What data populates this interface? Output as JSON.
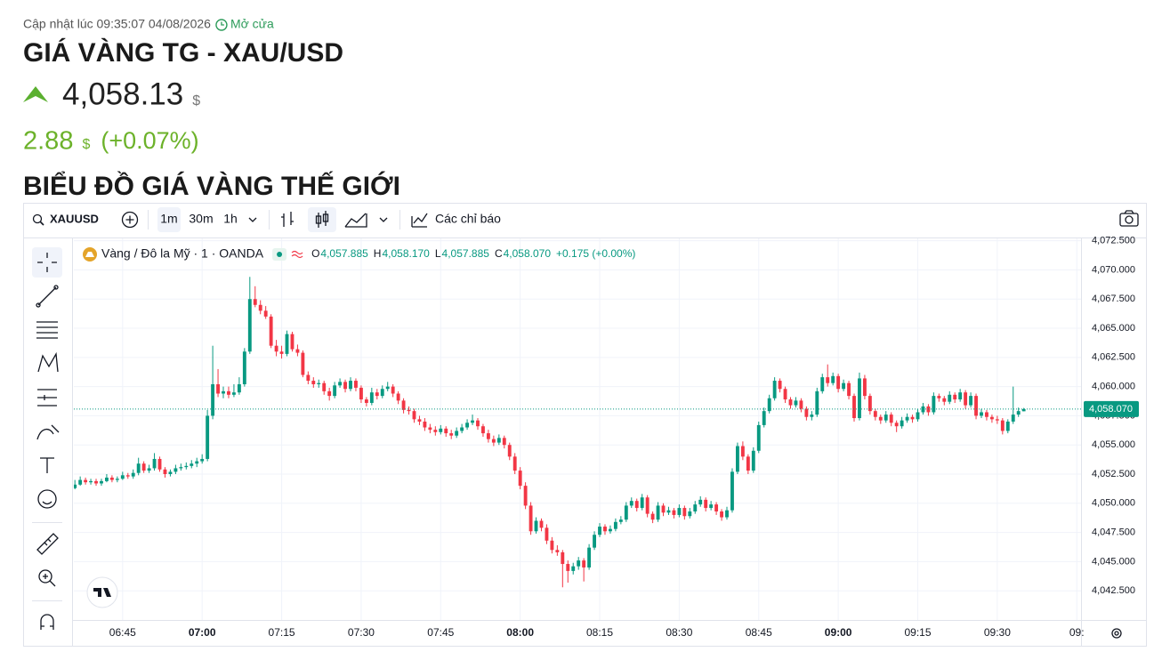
{
  "header": {
    "updated": "Cập nhật lúc 09:35:07 04/08/2026",
    "status": "Mở cửa",
    "title": "GIÁ VÀNG TG - XAU/USD",
    "price": "4,058.13",
    "currency": "$",
    "change": "2.88",
    "change_currency": "$",
    "change_pct": "(+0.07%)",
    "section_title": "BIỂU ĐỒ GIÁ VÀNG THẾ GIỚI"
  },
  "toolbar": {
    "symbol": "XAUUSD",
    "intervals": [
      "1m",
      "30m",
      "1h"
    ],
    "indicators": "Các chỉ báo"
  },
  "chart_data": {
    "type": "candlestick",
    "up_color": "#089981",
    "down_color": "#f23645",
    "grid": true,
    "legend": {
      "name": "Vàng / Đô la Mỹ · 1 · OANDA",
      "open_label": "O",
      "open": "4,057.885",
      "high_label": "H",
      "high": "4,058.170",
      "low_label": "L",
      "low": "4,057.885",
      "close_label": "C",
      "close": "4,058.070",
      "change": "+0.175 (+0.00%)"
    },
    "last_price": {
      "value": 4058.07,
      "label": "4,058.070"
    },
    "xlim": [
      395.8,
      585.8
    ],
    "ylim": [
      4040,
      4072.7
    ],
    "xticks": [
      {
        "value": 405,
        "label": "06:45"
      },
      {
        "value": 420,
        "label": "07:00"
      },
      {
        "value": 435,
        "label": "07:15"
      },
      {
        "value": 450,
        "label": "07:30"
      },
      {
        "value": 465,
        "label": "07:45"
      },
      {
        "value": 480,
        "label": "08:00"
      },
      {
        "value": 495,
        "label": "08:15"
      },
      {
        "value": 510,
        "label": "08:30"
      },
      {
        "value": 525,
        "label": "08:45"
      },
      {
        "value": 540,
        "label": "09:00"
      },
      {
        "value": 555,
        "label": "09:15"
      },
      {
        "value": 570,
        "label": "09:30"
      },
      {
        "value": 585,
        "label": "09:"
      }
    ],
    "yticks": [
      {
        "value": 4042.5,
        "label": "4,042.500"
      },
      {
        "value": 4045,
        "label": "4,045.000"
      },
      {
        "value": 4047.5,
        "label": "4,047.500"
      },
      {
        "value": 4050,
        "label": "4,050.000"
      },
      {
        "value": 4052.5,
        "label": "4,052.500"
      },
      {
        "value": 4055,
        "label": "4,055.000"
      },
      {
        "value": 4057.5,
        "label": "4,057.500"
      },
      {
        "value": 4060,
        "label": "4,060.000"
      },
      {
        "value": 4062.5,
        "label": "4,062.500"
      },
      {
        "value": 4065,
        "label": "4,065.000"
      },
      {
        "value": 4067.5,
        "label": "4,067.500"
      },
      {
        "value": 4070,
        "label": "4,070.000"
      },
      {
        "value": 4072.5,
        "label": "4,072.500"
      }
    ],
    "x": [
      396,
      397,
      398,
      399,
      400,
      401,
      402,
      403,
      404,
      405,
      406,
      407,
      408,
      409,
      410,
      411,
      412,
      413,
      414,
      415,
      416,
      417,
      418,
      419,
      420,
      421,
      422,
      423,
      424,
      425,
      426,
      427,
      428,
      429,
      430,
      431,
      432,
      433,
      434,
      435,
      436,
      437,
      438,
      439,
      440,
      441,
      442,
      443,
      444,
      445,
      446,
      447,
      448,
      449,
      450,
      451,
      452,
      453,
      454,
      455,
      456,
      457,
      458,
      459,
      460,
      461,
      462,
      463,
      464,
      465,
      466,
      467,
      468,
      469,
      470,
      471,
      472,
      473,
      474,
      475,
      476,
      477,
      478,
      479,
      480,
      481,
      482,
      483,
      484,
      485,
      486,
      487,
      488,
      489,
      490,
      491,
      492,
      493,
      494,
      495,
      496,
      497,
      498,
      499,
      500,
      501,
      502,
      503,
      504,
      505,
      506,
      507,
      508,
      509,
      510,
      511,
      512,
      513,
      514,
      515,
      516,
      517,
      518,
      519,
      520,
      521,
      522,
      523,
      524,
      525,
      526,
      527,
      528,
      529,
      530,
      531,
      532,
      533,
      534,
      535,
      536,
      537,
      538,
      539,
      540,
      541,
      542,
      543,
      544,
      545,
      546,
      547,
      548,
      549,
      550,
      551,
      552,
      553,
      554,
      555,
      556,
      557,
      558,
      559,
      560,
      561,
      562,
      563,
      564,
      565,
      566,
      567,
      568,
      569,
      570,
      571,
      572,
      573,
      574,
      575
    ],
    "ohlc": [
      [
        4051.3,
        4052.0,
        4051.2,
        4051.6
      ],
      [
        4051.6,
        4052.3,
        4051.5,
        4052.0
      ],
      [
        4052.0,
        4052.2,
        4051.6,
        4051.8
      ],
      [
        4051.8,
        4052.1,
        4051.6,
        4051.9
      ],
      [
        4051.9,
        4052.1,
        4051.5,
        4051.7
      ],
      [
        4051.7,
        4052.1,
        4051.5,
        4051.9
      ],
      [
        4051.9,
        4052.5,
        4051.8,
        4052.2
      ],
      [
        4052.2,
        4052.4,
        4051.8,
        4052.0
      ],
      [
        4052.0,
        4052.3,
        4051.8,
        4052.1
      ],
      [
        4052.1,
        4052.7,
        4052.0,
        4052.4
      ],
      [
        4052.4,
        4052.6,
        4052.1,
        4052.3
      ],
      [
        4052.3,
        4052.9,
        4052.1,
        4052.6
      ],
      [
        4052.6,
        4053.9,
        4052.4,
        4053.4
      ],
      [
        4053.4,
        4053.6,
        4052.6,
        4052.8
      ],
      [
        4052.8,
        4053.3,
        4052.6,
        4053.0
      ],
      [
        4053.0,
        4054.3,
        4052.8,
        4053.8
      ],
      [
        4053.8,
        4054.0,
        4052.7,
        4052.9
      ],
      [
        4052.9,
        4053.1,
        4052.2,
        4052.5
      ],
      [
        4052.5,
        4052.9,
        4052.3,
        4052.7
      ],
      [
        4052.7,
        4053.3,
        4052.5,
        4053.0
      ],
      [
        4053.0,
        4053.4,
        4052.8,
        4053.1
      ],
      [
        4053.1,
        4053.5,
        4052.9,
        4053.2
      ],
      [
        4053.2,
        4053.7,
        4053.0,
        4053.4
      ],
      [
        4053.4,
        4053.9,
        4053.1,
        4053.6
      ],
      [
        4053.6,
        4054.2,
        4053.4,
        4053.8
      ],
      [
        4053.8,
        4058.0,
        4053.6,
        4057.5
      ],
      [
        4057.5,
        4063.5,
        4057.2,
        4060.2
      ],
      [
        4060.2,
        4061.5,
        4059.1,
        4059.4
      ],
      [
        4059.4,
        4060.0,
        4059.0,
        4059.6
      ],
      [
        4059.6,
        4060.0,
        4059.0,
        4059.3
      ],
      [
        4059.3,
        4060.2,
        4059.1,
        4059.5
      ],
      [
        4059.5,
        4060.8,
        4059.3,
        4060.2
      ],
      [
        4060.2,
        4063.3,
        4060.0,
        4063.0
      ],
      [
        4063.0,
        4069.4,
        4062.8,
        4067.5
      ],
      [
        4067.5,
        4068.6,
        4066.8,
        4067.0
      ],
      [
        4067.0,
        4067.4,
        4066.2,
        4066.5
      ],
      [
        4066.5,
        4066.9,
        4065.8,
        4066.0
      ],
      [
        4066.0,
        4066.2,
        4063.3,
        4063.5
      ],
      [
        4063.5,
        4064.0,
        4062.6,
        4063.0
      ],
      [
        4063.0,
        4063.5,
        4062.4,
        4062.8
      ],
      [
        4062.8,
        4064.8,
        4062.6,
        4064.5
      ],
      [
        4064.5,
        4064.7,
        4063.0,
        4063.2
      ],
      [
        4063.2,
        4063.6,
        4062.6,
        4062.9
      ],
      [
        4062.9,
        4063.1,
        4060.8,
        4061.0
      ],
      [
        4061.0,
        4061.3,
        4060.2,
        4060.5
      ],
      [
        4060.5,
        4060.8,
        4059.9,
        4060.2
      ],
      [
        4060.2,
        4060.6,
        4059.9,
        4060.3
      ],
      [
        4060.3,
        4060.5,
        4059.3,
        4059.6
      ],
      [
        4059.6,
        4059.9,
        4058.8,
        4059.2
      ],
      [
        4059.2,
        4060.4,
        4059.0,
        4060.1
      ],
      [
        4060.1,
        4060.7,
        4059.9,
        4060.4
      ],
      [
        4060.4,
        4060.6,
        4059.5,
        4059.8
      ],
      [
        4059.8,
        4060.8,
        4059.6,
        4060.5
      ],
      [
        4060.5,
        4060.7,
        4059.6,
        4059.9
      ],
      [
        4059.9,
        4060.1,
        4058.6,
        4058.9
      ],
      [
        4058.9,
        4059.1,
        4058.3,
        4058.6
      ],
      [
        4058.6,
        4059.9,
        4058.4,
        4059.5
      ],
      [
        4059.5,
        4059.8,
        4058.9,
        4059.2
      ],
      [
        4059.2,
        4060.1,
        4059.0,
        4059.8
      ],
      [
        4059.8,
        4060.4,
        4059.6,
        4060.0
      ],
      [
        4060.0,
        4060.2,
        4059.1,
        4059.4
      ],
      [
        4059.4,
        4059.6,
        4058.5,
        4058.8
      ],
      [
        4058.8,
        4059.0,
        4057.7,
        4058.0
      ],
      [
        4058.0,
        4058.3,
        4057.6,
        4057.9
      ],
      [
        4057.9,
        4058.1,
        4056.9,
        4057.2
      ],
      [
        4057.2,
        4057.5,
        4056.7,
        4057.0
      ],
      [
        4057.0,
        4057.3,
        4056.2,
        4056.5
      ],
      [
        4056.5,
        4056.8,
        4056.0,
        4056.3
      ],
      [
        4056.3,
        4056.6,
        4055.8,
        4056.1
      ],
      [
        4056.1,
        4056.7,
        4055.9,
        4056.4
      ],
      [
        4056.4,
        4056.6,
        4055.7,
        4056.0
      ],
      [
        4056.0,
        4056.3,
        4055.5,
        4055.8
      ],
      [
        4055.8,
        4056.5,
        4055.6,
        4056.2
      ],
      [
        4056.2,
        4056.8,
        4056.0,
        4056.5
      ],
      [
        4056.5,
        4057.2,
        4056.3,
        4056.9
      ],
      [
        4056.9,
        4057.6,
        4056.7,
        4057.1
      ],
      [
        4057.1,
        4057.3,
        4056.3,
        4056.6
      ],
      [
        4056.6,
        4056.8,
        4055.7,
        4056.0
      ],
      [
        4056.0,
        4056.3,
        4055.2,
        4055.5
      ],
      [
        4055.5,
        4055.8,
        4054.9,
        4055.2
      ],
      [
        4055.2,
        4055.9,
        4055.0,
        4055.6
      ],
      [
        4055.6,
        4055.8,
        4054.7,
        4055.0
      ],
      [
        4055.0,
        4055.2,
        4053.7,
        4054.0
      ],
      [
        4054.0,
        4054.3,
        4052.5,
        4052.8
      ],
      [
        4052.8,
        4053.1,
        4051.2,
        4051.5
      ],
      [
        4051.5,
        4051.8,
        4049.5,
        4049.8
      ],
      [
        4049.8,
        4050.1,
        4047.3,
        4047.6
      ],
      [
        4047.6,
        4048.8,
        4047.4,
        4048.5
      ],
      [
        4048.5,
        4048.7,
        4047.6,
        4047.9
      ],
      [
        4047.9,
        4048.2,
        4046.5,
        4046.8
      ],
      [
        4046.8,
        4047.1,
        4045.7,
        4046.0
      ],
      [
        4046.0,
        4046.4,
        4045.5,
        4045.8
      ],
      [
        4045.8,
        4046.0,
        4042.8,
        4044.8
      ],
      [
        4044.8,
        4045.1,
        4043.2,
        4044.2
      ],
      [
        4044.2,
        4044.9,
        4043.9,
        4044.6
      ],
      [
        4044.6,
        4045.4,
        4044.3,
        4045.1
      ],
      [
        4045.1,
        4045.3,
        4043.3,
        4044.5
      ],
      [
        4044.5,
        4046.5,
        4044.3,
        4046.2
      ],
      [
        4046.2,
        4047.6,
        4046.0,
        4047.3
      ],
      [
        4047.3,
        4048.3,
        4047.1,
        4048.0
      ],
      [
        4048.0,
        4048.2,
        4047.3,
        4047.6
      ],
      [
        4047.6,
        4048.1,
        4047.4,
        4047.8
      ],
      [
        4047.8,
        4048.7,
        4047.6,
        4048.4
      ],
      [
        4048.4,
        4048.9,
        4048.2,
        4048.6
      ],
      [
        4048.6,
        4050.1,
        4048.4,
        4049.8
      ],
      [
        4049.8,
        4050.5,
        4049.6,
        4050.2
      ],
      [
        4050.2,
        4050.4,
        4049.3,
        4049.6
      ],
      [
        4049.6,
        4050.8,
        4049.4,
        4050.5
      ],
      [
        4050.5,
        4050.7,
        4048.8,
        4049.1
      ],
      [
        4049.1,
        4049.3,
        4048.3,
        4048.6
      ],
      [
        4048.6,
        4050.1,
        4048.4,
        4049.8
      ],
      [
        4049.8,
        4050.0,
        4048.9,
        4049.2
      ],
      [
        4049.2,
        4049.7,
        4049.0,
        4049.4
      ],
      [
        4049.4,
        4049.6,
        4048.7,
        4049.0
      ],
      [
        4049.0,
        4049.9,
        4048.8,
        4049.6
      ],
      [
        4049.6,
        4049.8,
        4048.6,
        4048.9
      ],
      [
        4048.9,
        4049.6,
        4048.7,
        4049.3
      ],
      [
        4049.3,
        4050.2,
        4049.1,
        4049.9
      ],
      [
        4049.9,
        4050.6,
        4049.7,
        4050.3
      ],
      [
        4050.3,
        4050.5,
        4049.3,
        4049.6
      ],
      [
        4049.6,
        4050.2,
        4049.4,
        4049.9
      ],
      [
        4049.9,
        4050.1,
        4049.0,
        4049.3
      ],
      [
        4049.3,
        4049.5,
        4048.5,
        4048.8
      ],
      [
        4048.8,
        4049.7,
        4048.6,
        4049.4
      ],
      [
        4049.4,
        4053.0,
        4049.2,
        4052.7
      ],
      [
        4052.7,
        4055.2,
        4052.5,
        4054.9
      ],
      [
        4054.9,
        4055.3,
        4053.7,
        4054.0
      ],
      [
        4054.0,
        4054.2,
        4052.5,
        4052.8
      ],
      [
        4052.8,
        4054.8,
        4052.6,
        4054.5
      ],
      [
        4054.5,
        4057.0,
        4054.3,
        4056.7
      ],
      [
        4056.7,
        4058.2,
        4056.5,
        4057.9
      ],
      [
        4057.9,
        4059.3,
        4057.7,
        4059.0
      ],
      [
        4059.0,
        4060.8,
        4058.8,
        4060.5
      ],
      [
        4060.5,
        4060.7,
        4059.5,
        4059.8
      ],
      [
        4059.8,
        4060.0,
        4058.6,
        4058.9
      ],
      [
        4058.9,
        4059.1,
        4058.1,
        4058.4
      ],
      [
        4058.4,
        4059.1,
        4058.2,
        4058.8
      ],
      [
        4058.8,
        4059.0,
        4057.8,
        4058.1
      ],
      [
        4058.1,
        4058.3,
        4057.1,
        4057.4
      ],
      [
        4057.4,
        4057.9,
        4057.1,
        4057.6
      ],
      [
        4057.6,
        4059.9,
        4057.4,
        4059.6
      ],
      [
        4059.6,
        4061.1,
        4059.4,
        4060.8
      ],
      [
        4060.8,
        4061.9,
        4060.0,
        4060.3
      ],
      [
        4060.3,
        4061.2,
        4060.1,
        4060.9
      ],
      [
        4060.9,
        4061.1,
        4059.5,
        4059.8
      ],
      [
        4059.8,
        4060.6,
        4059.6,
        4060.3
      ],
      [
        4060.3,
        4060.5,
        4058.9,
        4059.2
      ],
      [
        4059.2,
        4059.4,
        4057.0,
        4057.3
      ],
      [
        4057.3,
        4061.2,
        4057.1,
        4060.7
      ],
      [
        4060.7,
        4061.0,
        4058.9,
        4059.2
      ],
      [
        4059.2,
        4059.4,
        4057.6,
        4057.9
      ],
      [
        4057.9,
        4058.1,
        4057.1,
        4057.4
      ],
      [
        4057.4,
        4057.6,
        4056.8,
        4057.1
      ],
      [
        4057.1,
        4057.9,
        4056.9,
        4057.6
      ],
      [
        4057.6,
        4057.8,
        4056.6,
        4056.9
      ],
      [
        4056.9,
        4057.1,
        4056.1,
        4056.6
      ],
      [
        4056.6,
        4057.4,
        4056.4,
        4057.1
      ],
      [
        4057.1,
        4057.7,
        4056.9,
        4057.4
      ],
      [
        4057.4,
        4057.6,
        4056.9,
        4057.2
      ],
      [
        4057.2,
        4058.1,
        4057.0,
        4057.8
      ],
      [
        4057.8,
        4058.6,
        4057.6,
        4058.3
      ],
      [
        4058.3,
        4058.5,
        4057.5,
        4057.8
      ],
      [
        4057.8,
        4059.5,
        4057.6,
        4059.2
      ],
      [
        4059.2,
        4059.4,
        4058.7,
        4059.0
      ],
      [
        4059.0,
        4059.2,
        4058.4,
        4058.7
      ],
      [
        4058.7,
        4059.6,
        4058.5,
        4059.3
      ],
      [
        4059.3,
        4059.5,
        4058.6,
        4058.9
      ],
      [
        4058.9,
        4059.8,
        4058.7,
        4059.5
      ],
      [
        4059.5,
        4059.7,
        4058.1,
        4058.4
      ],
      [
        4058.4,
        4059.5,
        4058.2,
        4059.2
      ],
      [
        4059.2,
        4059.4,
        4057.2,
        4057.5
      ],
      [
        4057.5,
        4058.1,
        4057.3,
        4057.8
      ],
      [
        4057.8,
        4058.0,
        4057.1,
        4057.4
      ],
      [
        4057.4,
        4057.6,
        4056.9,
        4057.2
      ],
      [
        4057.2,
        4057.5,
        4056.8,
        4057.1
      ],
      [
        4057.1,
        4057.3,
        4055.9,
        4056.2
      ],
      [
        4056.2,
        4057.2,
        4056.0,
        4057.0
      ],
      [
        4057.0,
        4060.0,
        4056.8,
        4057.6
      ],
      [
        4057.6,
        4058.2,
        4057.4,
        4057.9
      ],
      [
        4057.885,
        4058.17,
        4057.885,
        4058.07
      ]
    ]
  }
}
